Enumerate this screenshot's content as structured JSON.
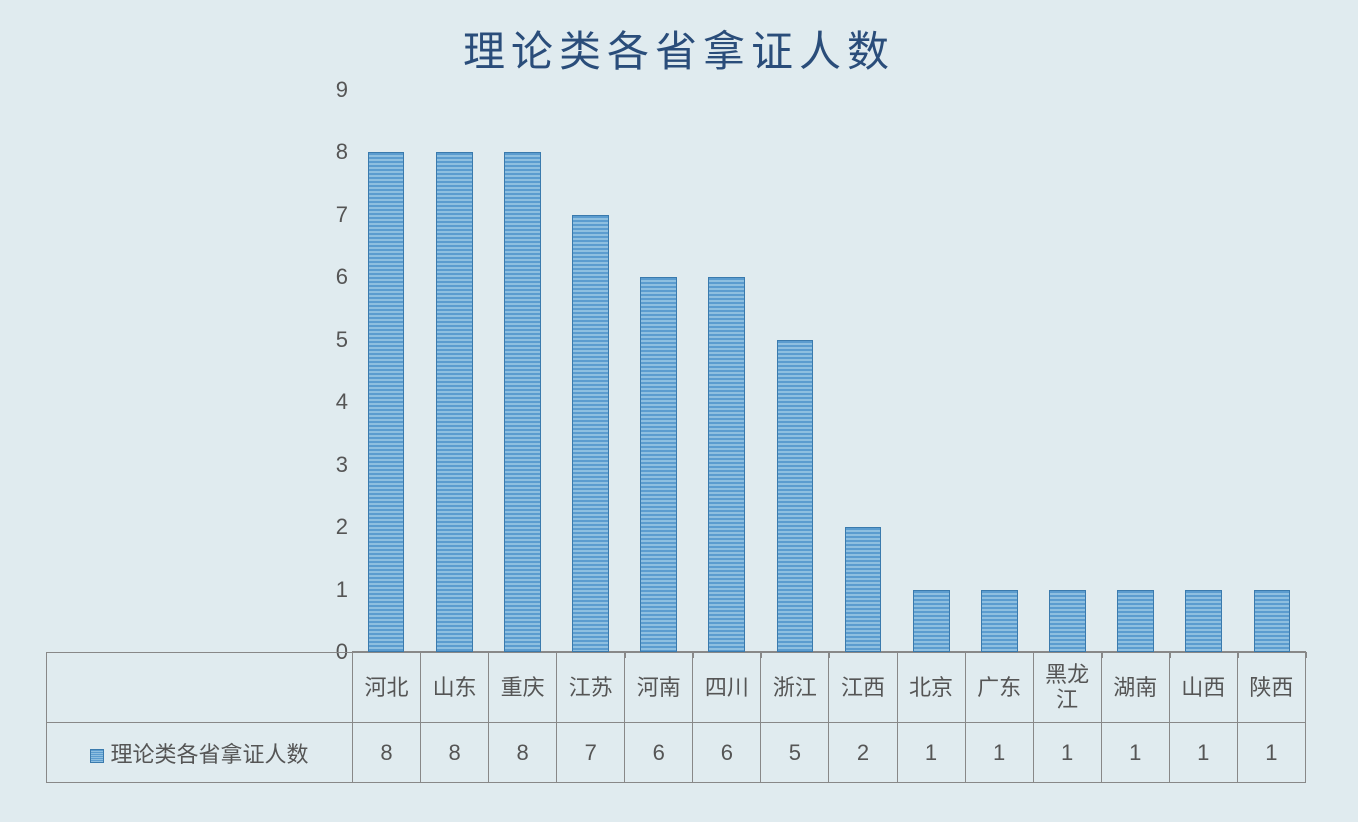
{
  "chart": {
    "type": "bar",
    "title": "理论类各省拿证人数",
    "title_fontsize": 42,
    "title_color": "#2a4d7a",
    "series_name": "理论类各省拿证人数",
    "categories": [
      "河北",
      "山东",
      "重庆",
      "江苏",
      "河南",
      "四川",
      "浙江",
      "江西",
      "北京",
      "广东",
      "黑龙江",
      "湖南",
      "山西",
      "陕西"
    ],
    "values": [
      8,
      8,
      8,
      7,
      6,
      6,
      5,
      2,
      1,
      1,
      1,
      1,
      1,
      1
    ],
    "bar_fill_color_a": "#5b9ccf",
    "bar_fill_color_b": "#8ebfe0",
    "bar_border_color": "#3a7aad",
    "bar_width": 0.54,
    "ylim": [
      0,
      9
    ],
    "ytick_step": 1,
    "axis_label_color": "#555555",
    "axis_label_fontsize": 22,
    "grid_color": "#888888",
    "background_color": "#e0ebef",
    "legend_position": "bottom-left",
    "show_data_table": true
  }
}
